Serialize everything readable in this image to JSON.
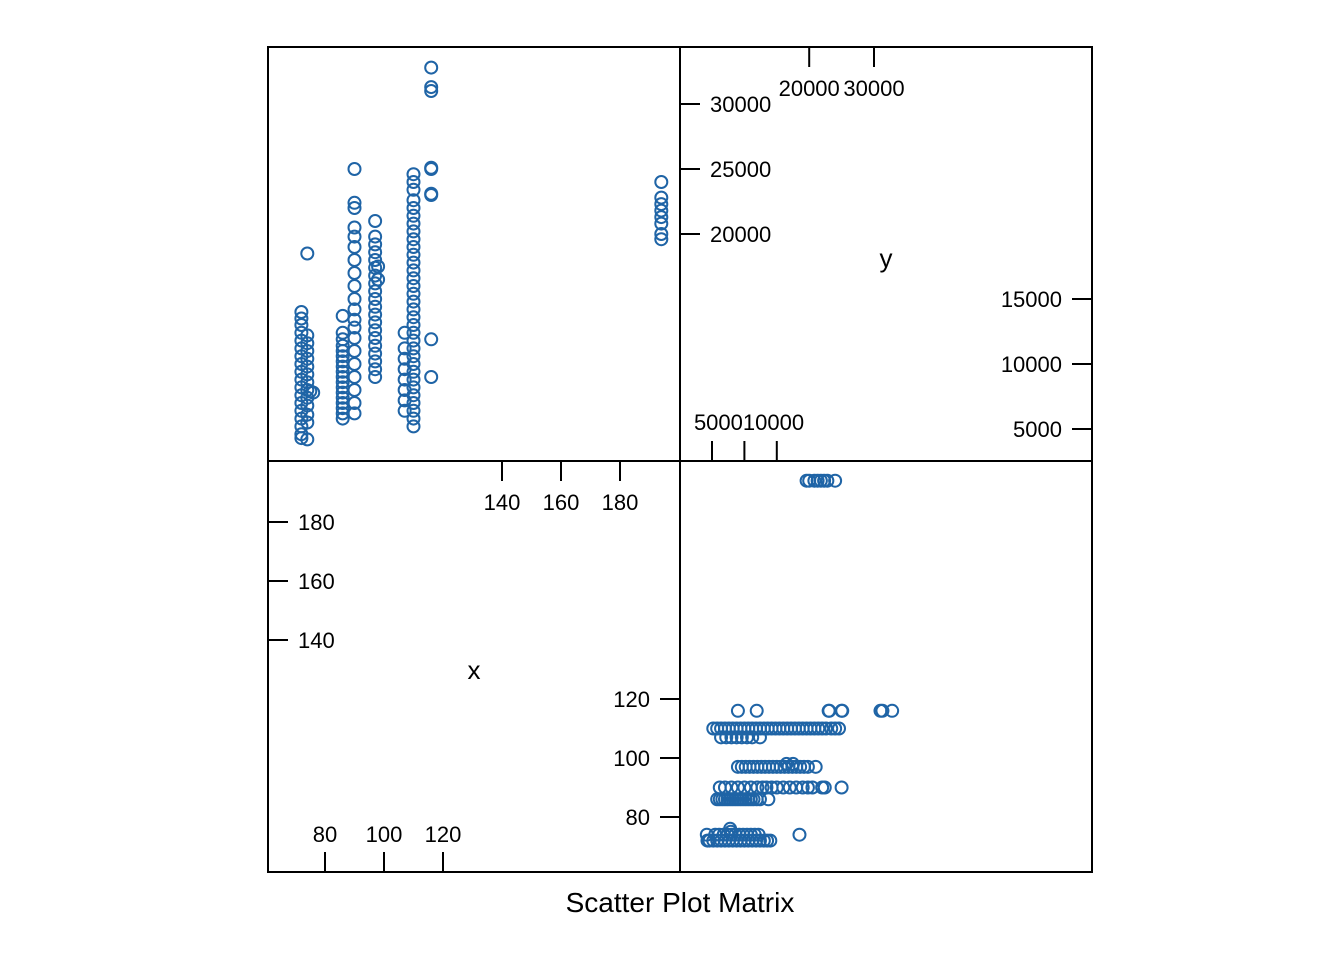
{
  "chart_data": {
    "type": "scatter",
    "subtype": "scatter-matrix",
    "xlabel": "Scatter Plot Matrix",
    "variables": [
      "x",
      "y"
    ],
    "color": "#1f64a6",
    "ticks": {
      "x_lower": [
        "80",
        "100",
        "120"
      ],
      "x_upper": [
        "140",
        "160",
        "180"
      ],
      "y_lower": [
        "5000",
        "10000",
        "15000"
      ],
      "y_upper": [
        "20000",
        "25000",
        "30000"
      ],
      "y_top_axis": [
        "20000",
        "30000"
      ],
      "y_bottom_axis": "500010000"
    },
    "x_range": [
      65,
      200
    ],
    "y_range": [
      3000,
      34500
    ],
    "points": [
      [
        72,
        4300
      ],
      [
        72,
        4600
      ],
      [
        72,
        5200
      ],
      [
        72,
        5800
      ],
      [
        72,
        6400
      ],
      [
        72,
        7000
      ],
      [
        72,
        7600
      ],
      [
        72,
        8200
      ],
      [
        72,
        8800
      ],
      [
        72,
        9400
      ],
      [
        72,
        10000
      ],
      [
        72,
        10600
      ],
      [
        72,
        11200
      ],
      [
        72,
        11800
      ],
      [
        72,
        12400
      ],
      [
        72,
        13000
      ],
      [
        72,
        13500
      ],
      [
        72,
        14000
      ],
      [
        74,
        4200
      ],
      [
        74,
        5500
      ],
      [
        74,
        6100
      ],
      [
        74,
        6800
      ],
      [
        74,
        7400
      ],
      [
        74,
        8000
      ],
      [
        74,
        8600
      ],
      [
        74,
        9200
      ],
      [
        74,
        9800
      ],
      [
        74,
        10400
      ],
      [
        74,
        11000
      ],
      [
        74,
        11600
      ],
      [
        74,
        12200
      ],
      [
        74,
        18500
      ],
      [
        75,
        7900
      ],
      [
        76,
        7800
      ],
      [
        86,
        5800
      ],
      [
        86,
        6200
      ],
      [
        86,
        6600
      ],
      [
        86,
        7000
      ],
      [
        86,
        7400
      ],
      [
        86,
        7800
      ],
      [
        86,
        8200
      ],
      [
        86,
        8600
      ],
      [
        86,
        9000
      ],
      [
        86,
        9400
      ],
      [
        86,
        9800
      ],
      [
        86,
        10200
      ],
      [
        86,
        10600
      ],
      [
        86,
        11000
      ],
      [
        86,
        11400
      ],
      [
        86,
        11900
      ],
      [
        86,
        12400
      ],
      [
        86,
        13700
      ],
      [
        90,
        6200
      ],
      [
        90,
        7000
      ],
      [
        90,
        8000
      ],
      [
        90,
        9000
      ],
      [
        90,
        10000
      ],
      [
        90,
        11000
      ],
      [
        90,
        12000
      ],
      [
        90,
        12800
      ],
      [
        90,
        13400
      ],
      [
        90,
        14200
      ],
      [
        90,
        15000
      ],
      [
        90,
        16000
      ],
      [
        90,
        17000
      ],
      [
        90,
        18000
      ],
      [
        90,
        19000
      ],
      [
        90,
        19800
      ],
      [
        90,
        20500
      ],
      [
        90,
        22000
      ],
      [
        90,
        22400
      ],
      [
        90,
        25000
      ],
      [
        97,
        9000
      ],
      [
        97,
        9600
      ],
      [
        97,
        10200
      ],
      [
        97,
        10800
      ],
      [
        97,
        11400
      ],
      [
        97,
        12000
      ],
      [
        97,
        12600
      ],
      [
        97,
        13200
      ],
      [
        97,
        13800
      ],
      [
        97,
        14400
      ],
      [
        97,
        15000
      ],
      [
        97,
        15600
      ],
      [
        97,
        16200
      ],
      [
        97,
        16800
      ],
      [
        97,
        17400
      ],
      [
        97,
        18000
      ],
      [
        97,
        18600
      ],
      [
        97,
        19200
      ],
      [
        97,
        19800
      ],
      [
        97,
        21000
      ],
      [
        98,
        16500
      ],
      [
        98,
        17500
      ],
      [
        107,
        6400
      ],
      [
        107,
        7200
      ],
      [
        107,
        8000
      ],
      [
        107,
        8800
      ],
      [
        107,
        9600
      ],
      [
        107,
        10400
      ],
      [
        107,
        11200
      ],
      [
        107,
        12400
      ],
      [
        110,
        5200
      ],
      [
        110,
        5800
      ],
      [
        110,
        6400
      ],
      [
        110,
        7000
      ],
      [
        110,
        7600
      ],
      [
        110,
        8200
      ],
      [
        110,
        8800
      ],
      [
        110,
        9400
      ],
      [
        110,
        10000
      ],
      [
        110,
        10600
      ],
      [
        110,
        11200
      ],
      [
        110,
        11800
      ],
      [
        110,
        12400
      ],
      [
        110,
        13000
      ],
      [
        110,
        13600
      ],
      [
        110,
        14200
      ],
      [
        110,
        14800
      ],
      [
        110,
        15400
      ],
      [
        110,
        16000
      ],
      [
        110,
        16600
      ],
      [
        110,
        17200
      ],
      [
        110,
        17800
      ],
      [
        110,
        18400
      ],
      [
        110,
        19000
      ],
      [
        110,
        19600
      ],
      [
        110,
        20200
      ],
      [
        110,
        20800
      ],
      [
        110,
        21400
      ],
      [
        110,
        22000
      ],
      [
        110,
        22600
      ],
      [
        110,
        23400
      ],
      [
        110,
        24000
      ],
      [
        110,
        24600
      ],
      [
        116,
        9000
      ],
      [
        116,
        11900
      ],
      [
        116,
        23000
      ],
      [
        116,
        23100
      ],
      [
        116,
        25000
      ],
      [
        116,
        25100
      ],
      [
        116,
        31000
      ],
      [
        116,
        31300
      ],
      [
        116,
        32800
      ],
      [
        194,
        19600
      ],
      [
        194,
        20000
      ],
      [
        194,
        20800
      ],
      [
        194,
        21300
      ],
      [
        194,
        21800
      ],
      [
        194,
        22300
      ],
      [
        194,
        22800
      ],
      [
        194,
        24000
      ]
    ]
  }
}
